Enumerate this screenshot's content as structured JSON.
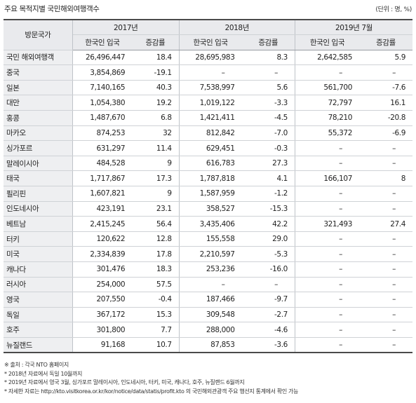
{
  "caption": "주요 목적지별 국민해외여행객수",
  "unit": "(단위 : 명, %)",
  "header": {
    "country": "방문국가",
    "years": [
      "2017년",
      "2018년",
      "2019년 7월"
    ],
    "sub": [
      "한국인 입국",
      "증감률",
      "한국인 입국",
      "증감률",
      "한국인 입국",
      "증감률"
    ]
  },
  "rows": [
    {
      "country": "국민 해외여행객",
      "v": [
        "26,496,447",
        "18.4",
        "28,695,983",
        "8.3",
        "2,642,585",
        "5.9"
      ]
    },
    {
      "country": "중국",
      "v": [
        "3,854,869",
        "-19.1",
        "–",
        "–",
        "–",
        "–"
      ]
    },
    {
      "country": "일본",
      "v": [
        "7,140,165",
        "40.3",
        "7,538,997",
        "5.6",
        "561,700",
        "-7.6"
      ]
    },
    {
      "country": "대만",
      "v": [
        "1,054,380",
        "19.2",
        "1,019,122",
        "-3.3",
        "72,797",
        "16.1"
      ]
    },
    {
      "country": "홍콩",
      "v": [
        "1,487,670",
        "6.8",
        "1,421,411",
        "-4.5",
        "78,210",
        "-20.8"
      ]
    },
    {
      "country": "마카오",
      "v": [
        "874,253",
        "32",
        "812,842",
        "-7.0",
        "55,372",
        "-6.9"
      ]
    },
    {
      "country": "싱가포르",
      "v": [
        "631,297",
        "11.4",
        "629,451",
        "-0.3",
        "–",
        "–"
      ]
    },
    {
      "country": "말레이시아",
      "v": [
        "484,528",
        "9",
        "616,783",
        "27.3",
        "–",
        "–"
      ]
    },
    {
      "country": "태국",
      "v": [
        "1,717,867",
        "17.3",
        "1,787,818",
        "4.1",
        "166,107",
        "8"
      ]
    },
    {
      "country": "필리핀",
      "v": [
        "1,607,821",
        "9",
        "1,587,959",
        "-1.2",
        "–",
        "–"
      ]
    },
    {
      "country": "인도네시아",
      "v": [
        "423,191",
        "23.1",
        "358,527",
        "-15.3",
        "–",
        "–"
      ]
    },
    {
      "country": "베트남",
      "v": [
        "2,415,245",
        "56.4",
        "3,435,406",
        "42.2",
        "321,493",
        "27.4"
      ]
    },
    {
      "country": "터키",
      "v": [
        "120,622",
        "12.8",
        "155,558",
        "29.0",
        "–",
        "–"
      ]
    },
    {
      "country": "미국",
      "v": [
        "2,334,839",
        "17.8",
        "2,210,597",
        "-5.3",
        "–",
        "–"
      ]
    },
    {
      "country": "캐나다",
      "v": [
        "301,476",
        "18.3",
        "253,236",
        "-16.0",
        "–",
        "–"
      ]
    },
    {
      "country": "러시아",
      "v": [
        "254,000",
        "57.5",
        "–",
        "–",
        "–",
        "–"
      ]
    },
    {
      "country": "영국",
      "v": [
        "207,550",
        "-0.4",
        "187,466",
        "-9.7",
        "–",
        "–"
      ]
    },
    {
      "country": "독일",
      "v": [
        "367,172",
        "15.3",
        "309,548",
        "-2.7",
        "–",
        "–"
      ]
    },
    {
      "country": "호주",
      "v": [
        "301,800",
        "7.7",
        "288,000",
        "-4.6",
        "–",
        "–"
      ]
    },
    {
      "country": "뉴질랜드",
      "v": [
        "91,168",
        "10.7",
        "87,853",
        "-3.6",
        "–",
        "–"
      ]
    }
  ],
  "notes": [
    "※ 출처 : 각국 NTO 홈페이지",
    "* 2018년 자료에서 독일 10월까지",
    "* 2019년 자료에서 영국 3월, 싱가포르 말레이시아, 인도네시아, 터키, 미국, 캐나다, 호주, 뉴질랜드 6월까지",
    "* 자세한 자료는 http://kto.visitkorea.or.kr/kor/notice/data/statis/profit.kto 의 국민해외관광객 주요 행선지 통계에서 확인 가능"
  ]
}
